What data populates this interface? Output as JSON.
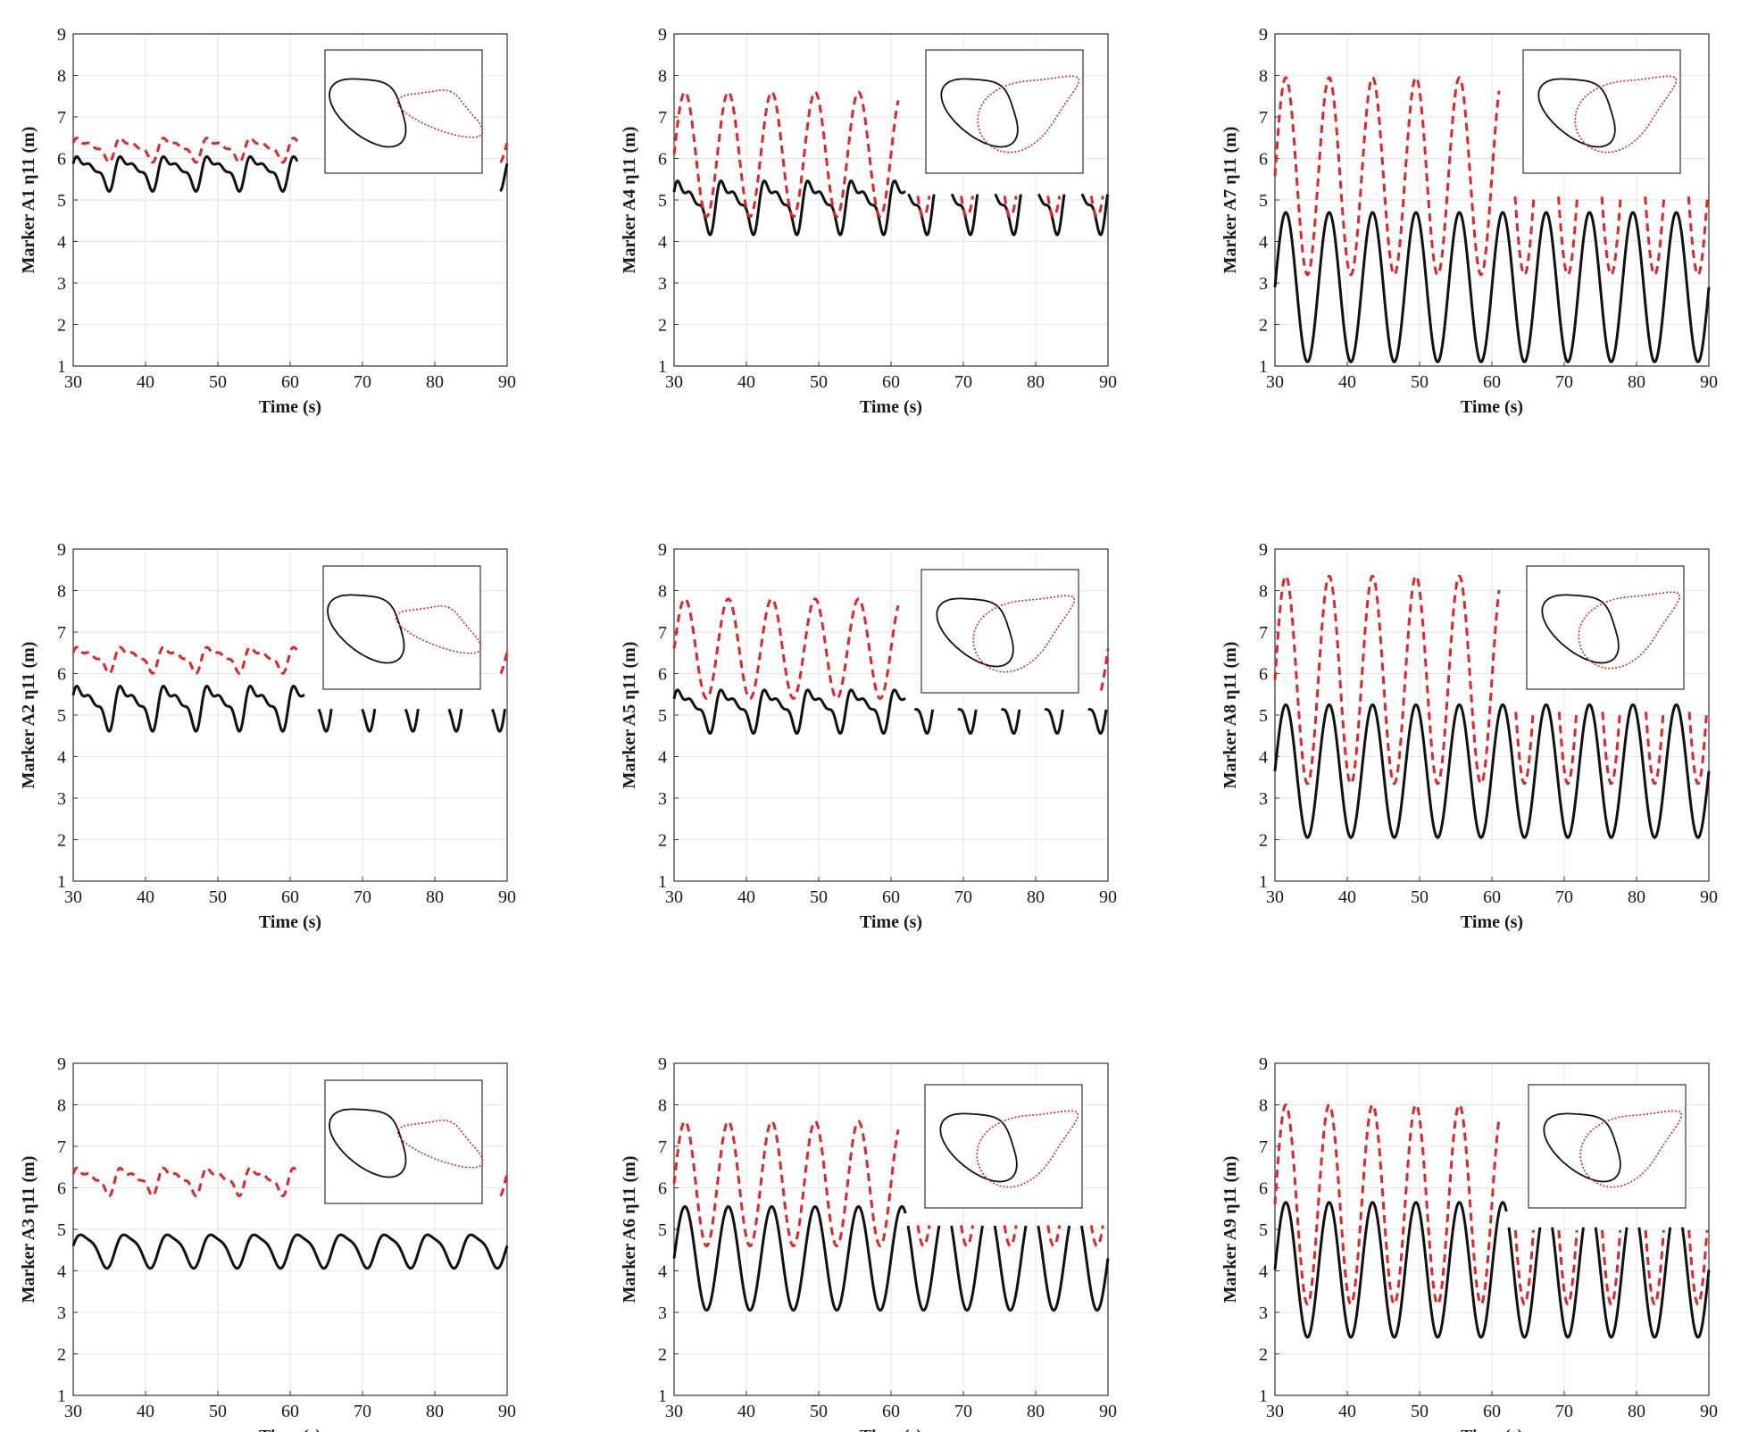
{
  "figure": {
    "layout": {
      "rows": 3,
      "cols": 3,
      "order": "column-major"
    }
  },
  "colors": {
    "series_solid": "#111111",
    "series_dashed": "#e0262a",
    "grid": "#e6e6e6",
    "axis": "#333333"
  },
  "chart_data": [
    {
      "panel": "A1",
      "type": "line",
      "ylabel": "Marker A1 η11 (m)",
      "xlabel": "Time (s)",
      "xlim": [
        30,
        90
      ],
      "ylim": [
        1,
        9
      ],
      "xticks": [
        30,
        40,
        50,
        60,
        70,
        80,
        90
      ],
      "yticks": [
        1,
        2,
        3,
        4,
        5,
        6,
        7,
        8,
        9
      ],
      "grid": true,
      "series": [
        {
          "style": "solid",
          "color": "#111111",
          "period": 6.0,
          "min": 5.2,
          "max": 6.2,
          "shape": "multi-peak",
          "visible_ranges": [
            [
              30,
              61
            ],
            [
              89,
              90
            ]
          ]
        },
        {
          "style": "dashed",
          "color": "#e0262a",
          "period": 6.0,
          "min": 5.9,
          "max": 6.6,
          "shape": "multi-peak",
          "visible_ranges": [
            [
              30,
              61
            ],
            [
              89,
              90
            ]
          ]
        }
      ],
      "inset": {
        "type": "phase-portrait",
        "solid_loop": "figure-eight",
        "dashed_loop": "teardrop, separated"
      }
    },
    {
      "panel": "A2",
      "type": "line",
      "ylabel": "Marker A2 η11 (m)",
      "xlabel": "Time (s)",
      "xlim": [
        30,
        90
      ],
      "ylim": [
        1,
        9
      ],
      "xticks": [
        30,
        40,
        50,
        60,
        70,
        80,
        90
      ],
      "yticks": [
        1,
        2,
        3,
        4,
        5,
        6,
        7,
        8,
        9
      ],
      "grid": true,
      "series": [
        {
          "style": "solid",
          "color": "#111111",
          "period": 6.0,
          "min": 4.6,
          "max": 5.9,
          "shape": "multi-peak",
          "visible_ranges": [
            [
              30,
              62
            ],
            [
              62,
              90
            ]
          ],
          "clip_above_after_62": 5.15
        },
        {
          "style": "dashed",
          "color": "#e0262a",
          "period": 6.0,
          "min": 6.0,
          "max": 6.75,
          "shape": "multi-peak",
          "visible_ranges": [
            [
              30,
              61
            ],
            [
              89,
              90
            ]
          ]
        }
      ],
      "inset": {
        "type": "phase-portrait",
        "solid_loop": "bean",
        "dashed_loop": "narrow teardrop, separated"
      }
    },
    {
      "panel": "A3",
      "type": "line",
      "ylabel": "Marker A3 η11 (m)",
      "xlabel": "Time (s)",
      "xlim": [
        30,
        90
      ],
      "ylim": [
        1,
        9
      ],
      "xticks": [
        30,
        40,
        50,
        60,
        70,
        80,
        90
      ],
      "yticks": [
        1,
        2,
        3,
        4,
        5,
        6,
        7,
        8,
        9
      ],
      "grid": true,
      "series": [
        {
          "style": "solid",
          "color": "#111111",
          "period": 6.0,
          "min": 4.05,
          "max": 5.0,
          "shape": "shoulder",
          "visible_ranges": [
            [
              30,
              90
            ]
          ]
        },
        {
          "style": "dashed",
          "color": "#e0262a",
          "period": 6.0,
          "min": 5.8,
          "max": 6.6,
          "shape": "multi-peak",
          "visible_ranges": [
            [
              30,
              61
            ],
            [
              89,
              90
            ]
          ]
        }
      ],
      "inset": {
        "type": "phase-portrait",
        "solid_loop": "tilted ellipse",
        "dashed_loop": "narrow teardrop, separated"
      }
    },
    {
      "panel": "A4",
      "type": "line",
      "ylabel": "Marker A4 η11 (m)",
      "xlabel": "Time (s)",
      "xlim": [
        30,
        90
      ],
      "ylim": [
        1,
        9
      ],
      "xticks": [
        30,
        40,
        50,
        60,
        70,
        80,
        90
      ],
      "yticks": [
        1,
        2,
        3,
        4,
        5,
        6,
        7,
        8,
        9
      ],
      "grid": true,
      "series": [
        {
          "style": "solid",
          "color": "#111111",
          "period": 6.0,
          "min": 4.15,
          "max": 5.7,
          "shape": "multi-peak",
          "visible_ranges": [
            [
              30,
              62
            ],
            [
              62,
              90
            ]
          ],
          "clip_above_after_62": 5.15
        },
        {
          "style": "dashed",
          "color": "#e0262a",
          "period": 6.0,
          "min": 4.6,
          "max": 7.6,
          "shape": "wave",
          "visible_ranges": [
            [
              30,
              61
            ],
            [
              61,
              90
            ]
          ],
          "clip_above_after_61": 5.15
        }
      ],
      "inset": {
        "type": "phase-portrait",
        "solid_loop": "bean",
        "dashed_loop": "large teardrop, overlapping"
      }
    },
    {
      "panel": "A5",
      "type": "line",
      "ylabel": "Marker A5 η11 (m)",
      "xlabel": "Time (s)",
      "xlim": [
        30,
        90
      ],
      "ylim": [
        1,
        9
      ],
      "xticks": [
        30,
        40,
        50,
        60,
        70,
        80,
        90
      ],
      "yticks": [
        1,
        2,
        3,
        4,
        5,
        6,
        7,
        8,
        9
      ],
      "grid": true,
      "series": [
        {
          "style": "solid",
          "color": "#111111",
          "period": 6.0,
          "min": 4.55,
          "max": 5.8,
          "shape": "multi-peak",
          "visible_ranges": [
            [
              30,
              62
            ],
            [
              62,
              90
            ]
          ],
          "clip_above_after_62": 5.15
        },
        {
          "style": "dashed",
          "color": "#e0262a",
          "period": 6.0,
          "min": 5.4,
          "max": 7.8,
          "shape": "wave",
          "visible_ranges": [
            [
              30,
              61
            ],
            [
              89,
              90
            ]
          ]
        }
      ],
      "inset": {
        "type": "phase-portrait",
        "solid_loop": "curved crescent",
        "dashed_loop": "large teardrop, overlapping"
      }
    },
    {
      "panel": "A6",
      "type": "line",
      "ylabel": "Marker A6 η11 (m)",
      "xlabel": "Time (s)",
      "xlim": [
        30,
        90
      ],
      "ylim": [
        1,
        9
      ],
      "xticks": [
        30,
        40,
        50,
        60,
        70,
        80,
        90
      ],
      "yticks": [
        1,
        2,
        3,
        4,
        5,
        6,
        7,
        8,
        9
      ],
      "grid": true,
      "series": [
        {
          "style": "solid",
          "color": "#111111",
          "period": 6.0,
          "min": 3.05,
          "max": 5.55,
          "shape": "wave",
          "visible_ranges": [
            [
              30,
              62
            ],
            [
              62,
              90
            ]
          ],
          "clip_above_after_62": 5.1
        },
        {
          "style": "dashed",
          "color": "#e0262a",
          "period": 6.0,
          "min": 4.6,
          "max": 7.6,
          "shape": "wave",
          "visible_ranges": [
            [
              30,
              61
            ],
            [
              61,
              90
            ]
          ],
          "clip_above_after_61": 5.1
        }
      ],
      "inset": {
        "type": "phase-portrait",
        "solid_loop": "teardrop",
        "dashed_loop": "teardrop, overlapping"
      }
    },
    {
      "panel": "A7",
      "type": "line",
      "ylabel": "Marker A7 η11 (m)",
      "xlabel": "Time (s)",
      "xlim": [
        30,
        90
      ],
      "ylim": [
        1,
        9
      ],
      "xticks": [
        30,
        40,
        50,
        60,
        70,
        80,
        90
      ],
      "yticks": [
        1,
        2,
        3,
        4,
        5,
        6,
        7,
        8,
        9
      ],
      "grid": true,
      "series": [
        {
          "style": "solid",
          "color": "#111111",
          "period": 6.0,
          "min": 1.1,
          "max": 4.7,
          "shape": "wave",
          "visible_ranges": [
            [
              30,
              90
            ]
          ]
        },
        {
          "style": "dashed",
          "color": "#e0262a",
          "period": 6.0,
          "min": 3.2,
          "max": 7.95,
          "shape": "wave",
          "visible_ranges": [
            [
              30,
              61
            ],
            [
              61,
              90
            ]
          ],
          "clip_above_after_61": 5.15
        }
      ],
      "inset": {
        "type": "phase-portrait",
        "solid_loop": "ellipse",
        "dashed_loop": "teardrop, overlapping"
      }
    },
    {
      "panel": "A8",
      "type": "line",
      "ylabel": "Marker A8 η11 (m)",
      "xlabel": "Time (s)",
      "xlim": [
        30,
        90
      ],
      "ylim": [
        1,
        9
      ],
      "xticks": [
        30,
        40,
        50,
        60,
        70,
        80,
        90
      ],
      "yticks": [
        1,
        2,
        3,
        4,
        5,
        6,
        7,
        8,
        9
      ],
      "grid": true,
      "series": [
        {
          "style": "solid",
          "color": "#111111",
          "period": 6.0,
          "min": 2.05,
          "max": 5.25,
          "shape": "wave",
          "visible_ranges": [
            [
              30,
              90
            ]
          ]
        },
        {
          "style": "dashed",
          "color": "#e0262a",
          "period": 6.0,
          "min": 3.35,
          "max": 8.35,
          "shape": "wave",
          "visible_ranges": [
            [
              30,
              61
            ],
            [
              61,
              90
            ]
          ],
          "clip_above_after_61": 5.15
        }
      ],
      "inset": {
        "type": "phase-portrait",
        "solid_loop": "teardrop",
        "dashed_loop": "teardrop, overlapping"
      }
    },
    {
      "panel": "A9",
      "type": "line",
      "ylabel": "Marker A9 η11 (m)",
      "xlabel": "Time (s)",
      "xlim": [
        30,
        90
      ],
      "ylim": [
        1,
        9
      ],
      "xticks": [
        30,
        40,
        50,
        60,
        70,
        80,
        90
      ],
      "yticks": [
        1,
        2,
        3,
        4,
        5,
        6,
        7,
        8,
        9
      ],
      "grid": true,
      "series": [
        {
          "style": "solid",
          "color": "#111111",
          "period": 6.0,
          "min": 2.4,
          "max": 5.65,
          "shape": "wave",
          "visible_ranges": [
            [
              30,
              62
            ],
            [
              62,
              90
            ]
          ],
          "clip_above_after_62": 5.1
        },
        {
          "style": "dashed",
          "color": "#e0262a",
          "period": 6.0,
          "min": 3.2,
          "max": 8.0,
          "shape": "wave",
          "visible_ranges": [
            [
              30,
              61
            ],
            [
              61,
              90
            ]
          ],
          "clip_above_after_61": 5.1
        }
      ],
      "inset": {
        "type": "phase-portrait",
        "solid_loop": "teardrop",
        "dashed_loop": "teardrop, overlapping"
      }
    }
  ]
}
